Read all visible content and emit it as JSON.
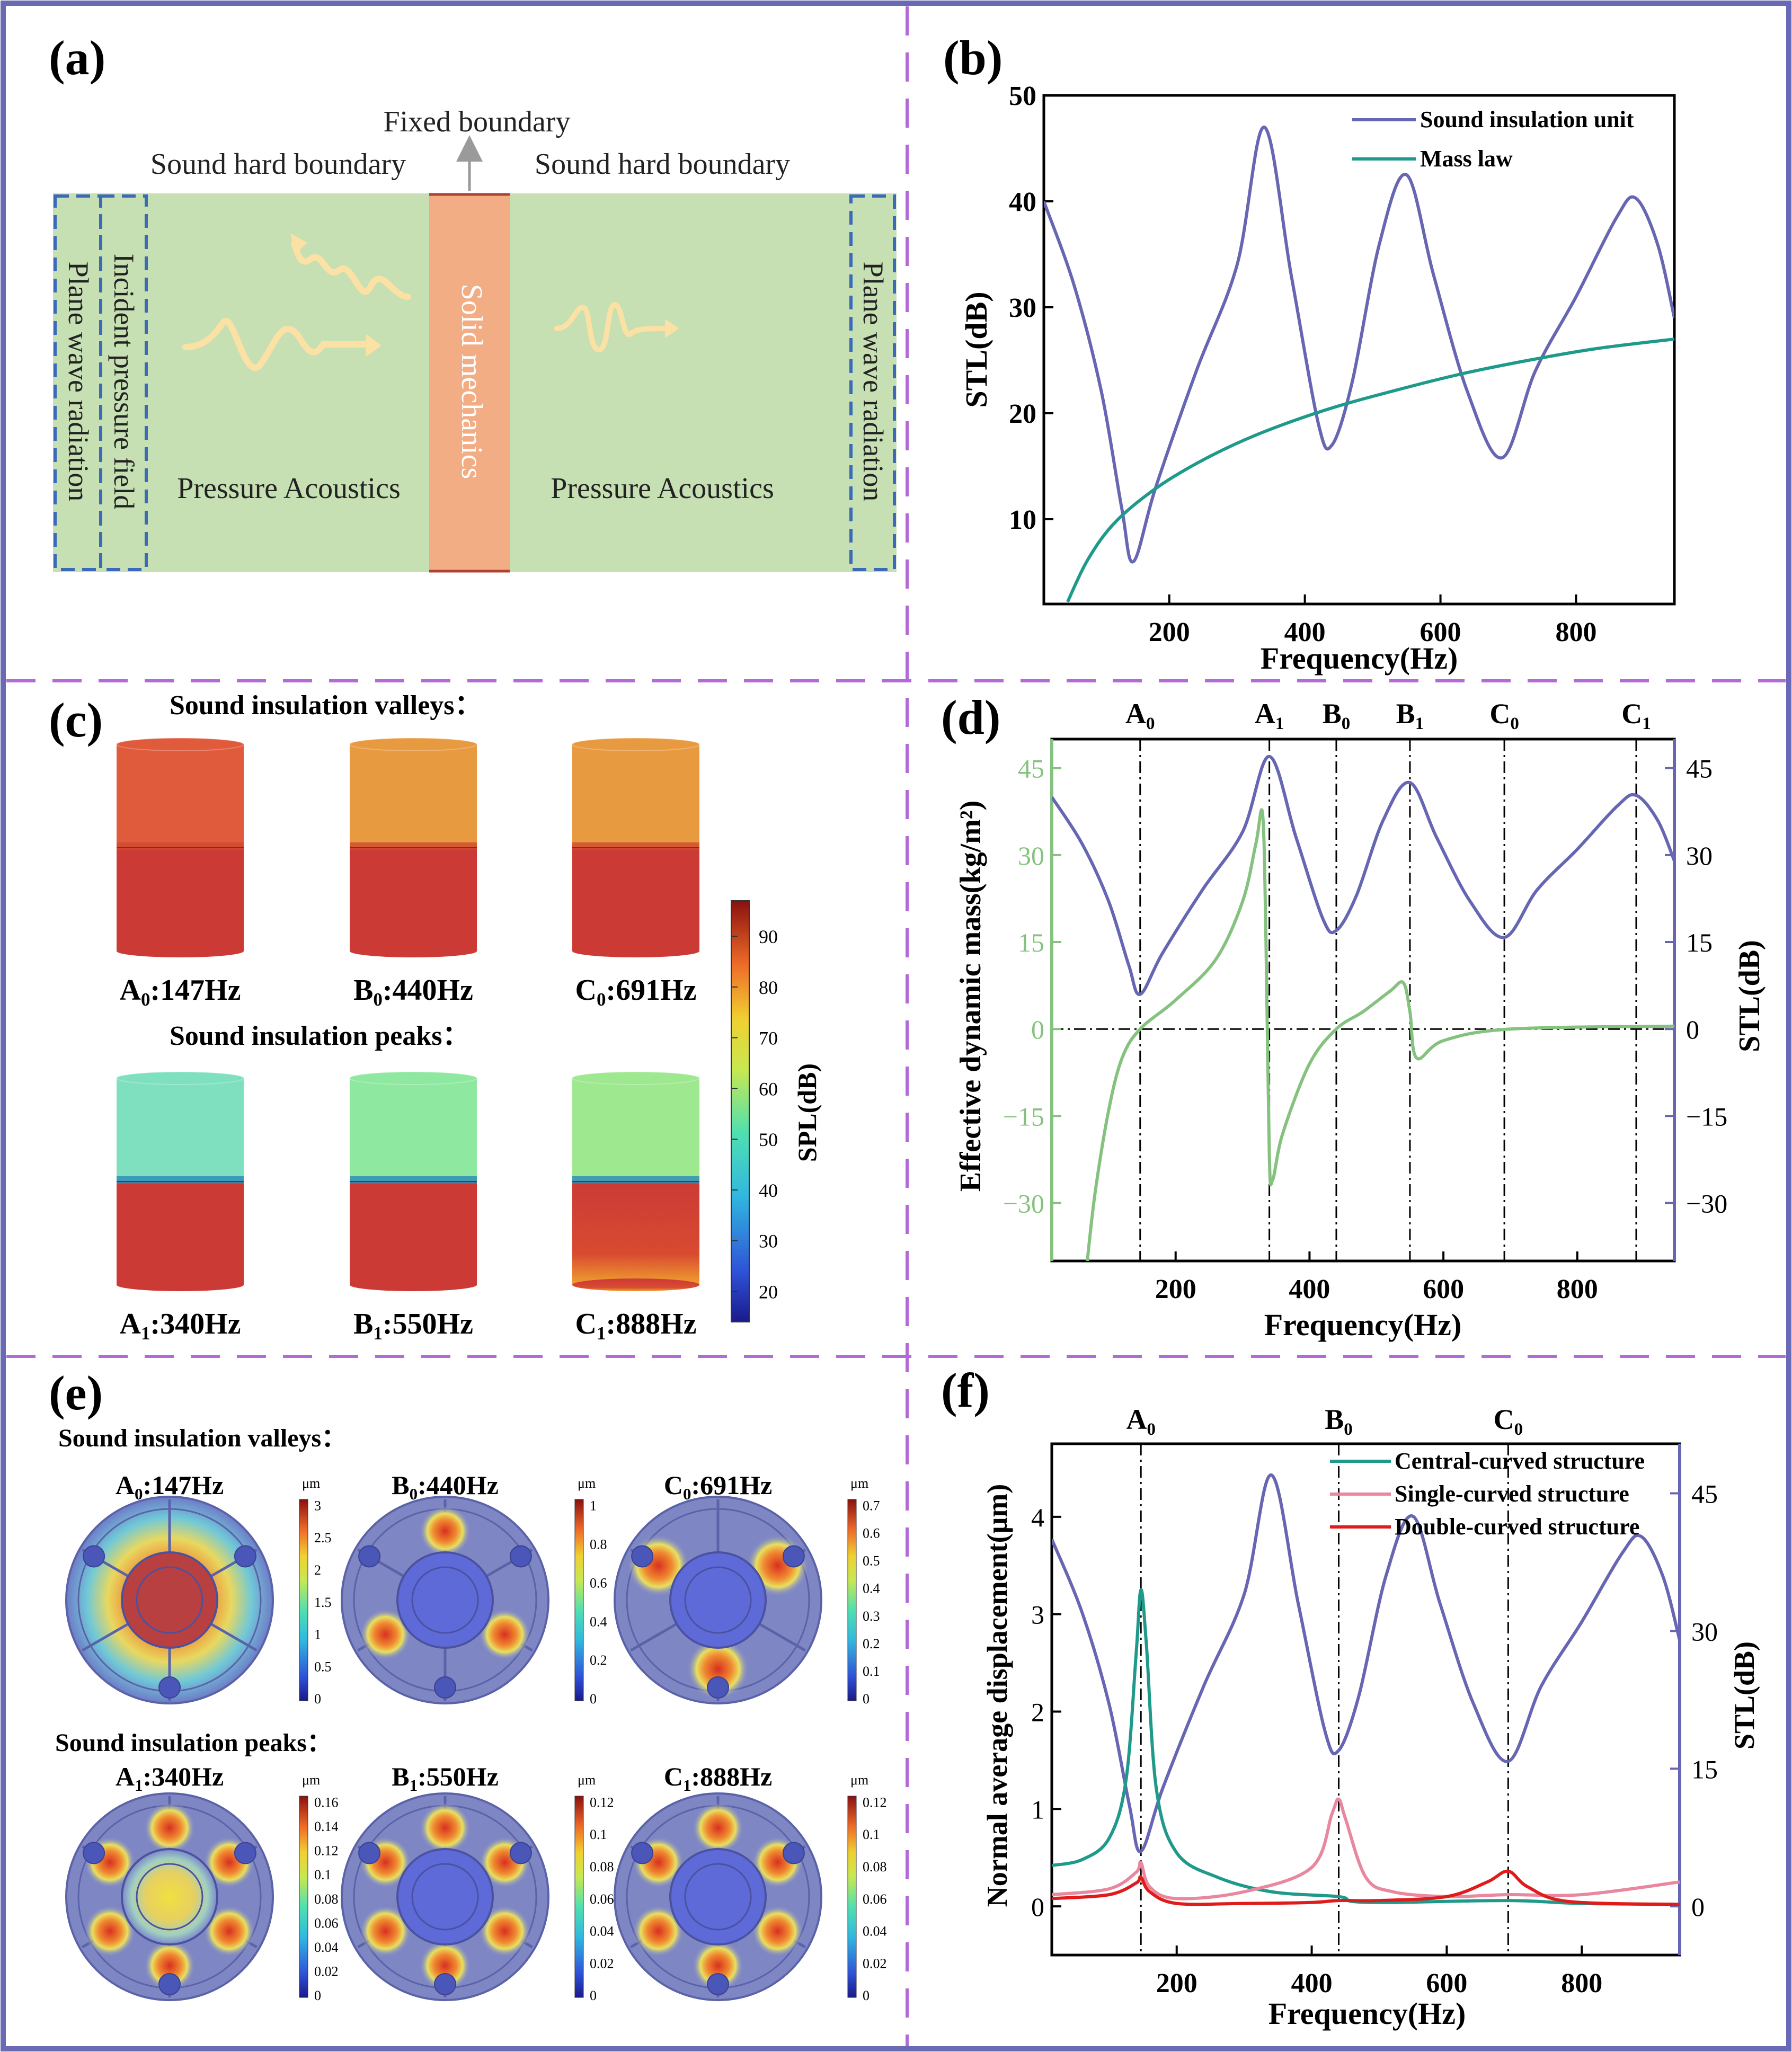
{
  "colors": {
    "frame": "#6a6ab4",
    "divider": "#b36ad6",
    "stl": "#6666b3",
    "mass_law": "#1f9a8a",
    "dyn_mass": "#86c27f",
    "central": "#1f9a8a",
    "single": "#e8879e",
    "double": "#e01b1b",
    "acoustic_domain": "#c6dfb3",
    "solid_domain": "#f2ad85",
    "wave": "#fbe1a3"
  },
  "panel_a": {
    "label": "(a)",
    "fixed_boundary": "Fixed boundary",
    "sound_hard_left": "Sound hard boundary",
    "sound_hard_right": "Sound hard boundary",
    "plane_wave_left": "Plane wave radiation",
    "incident_field": "Incident pressure field",
    "pressure_left": "Pressure Acoustics",
    "solid": "Solid mechanics",
    "pressure_right": "Pressure Acoustics",
    "plane_wave_right": "Plane wave radiation"
  },
  "panel_c": {
    "label": "(c)",
    "valleys_title": "Sound insulation valleys：",
    "peaks_title": "Sound insulation peaks：",
    "valleys": [
      {
        "mode": "A",
        "sub": "0",
        "freq": ":147Hz",
        "top_color": "#e05a3c",
        "bottom_color": "#cc3a36"
      },
      {
        "mode": "B",
        "sub": "0",
        "freq": ":440Hz",
        "top_color": "#e89a40",
        "bottom_color": "#cc3a36"
      },
      {
        "mode": "C",
        "sub": "0",
        "freq": ":691Hz",
        "top_color": "#e89a40",
        "bottom_color": "#cc3a36"
      }
    ],
    "peaks": [
      {
        "mode": "A",
        "sub": "1",
        "freq": ":340Hz",
        "top_color": "#7fe0c0",
        "bottom_color": "#cc3a36"
      },
      {
        "mode": "B",
        "sub": "1",
        "freq": ":550Hz",
        "top_color": "#8fe8a0",
        "bottom_color": "#cc3a36"
      },
      {
        "mode": "C",
        "sub": "1",
        "freq": ":888Hz",
        "top_color": "#9ee890",
        "bottom_color": "#cc3a36"
      }
    ],
    "colorbar": {
      "label": "SPL(dB)",
      "ticks": [
        "90",
        "80",
        "70",
        "60",
        "50",
        "40",
        "30",
        "20"
      ]
    }
  },
  "panel_e": {
    "label": "(e)",
    "valleys_title": "Sound insulation valleys：",
    "peaks_title": "Sound insulation peaks：",
    "unit": "μm",
    "items": [
      {
        "mode": "A",
        "sub": "0",
        "freq": ":147Hz",
        "ticks": [
          "3",
          "2.5",
          "2",
          "1.5",
          "1",
          "0.5",
          "0"
        ]
      },
      {
        "mode": "B",
        "sub": "0",
        "freq": ":440Hz",
        "ticks": [
          "1",
          "0.8",
          "0.6",
          "0.4",
          "0.2",
          "0"
        ]
      },
      {
        "mode": "C",
        "sub": "0",
        "freq": ":691Hz",
        "ticks": [
          "0.7",
          "0.6",
          "0.5",
          "0.4",
          "0.3",
          "0.2",
          "0.1",
          "0"
        ]
      },
      {
        "mode": "A",
        "sub": "1",
        "freq": ":340Hz",
        "ticks": [
          "0.16",
          "0.14",
          "0.12",
          "0.1",
          "0.08",
          "0.06",
          "0.04",
          "0.02",
          "0"
        ]
      },
      {
        "mode": "B",
        "sub": "1",
        "freq": ":550Hz",
        "ticks": [
          "0.12",
          "0.1",
          "0.08",
          "0.06",
          "0.04",
          "0.02",
          "0"
        ]
      },
      {
        "mode": "C",
        "sub": "1",
        "freq": ":888Hz",
        "ticks": [
          "0.12",
          "0.1",
          "0.08",
          "0.06",
          "0.04",
          "0.02",
          "0"
        ]
      }
    ]
  },
  "chart_data": [
    {
      "id": "b",
      "panel_label": "(b)",
      "type": "line",
      "xlabel": "Frequency(Hz)",
      "ylabel": "STL(dB)",
      "xlim": [
        15,
        945
      ],
      "ylim": [
        2,
        50
      ],
      "xticks": [
        200,
        400,
        600,
        800
      ],
      "yticks": [
        10,
        20,
        30,
        40,
        50
      ],
      "legend": "top-right",
      "series": [
        {
          "name": "Sound insulation unit",
          "x": [
            15,
            60,
            100,
            130,
            147,
            180,
            240,
            300,
            340,
            380,
            420,
            440,
            470,
            510,
            550,
            590,
            640,
            691,
            740,
            800,
            860,
            888,
            920,
            945
          ],
          "y": [
            40,
            32,
            22,
            11,
            6,
            13,
            24,
            34,
            47,
            33,
            19,
            17,
            23,
            36,
            42.5,
            33,
            22,
            15.8,
            24,
            31,
            38.5,
            40.3,
            36,
            29
          ]
        },
        {
          "name": "Mass law",
          "x": [
            50,
            80,
            120,
            180,
            250,
            330,
            430,
            530,
            630,
            730,
            830,
            945
          ],
          "y": [
            2.2,
            6.2,
            9.7,
            12.9,
            15.6,
            18,
            20.3,
            22.1,
            23.7,
            25,
            26.1,
            27
          ]
        }
      ]
    },
    {
      "id": "d",
      "panel_label": "(d)",
      "type": "line",
      "xlabel": "Frequency(Hz)",
      "ylabel": "Effective dynamic mass(kg/m²)",
      "ylabel_right": "STL(dB)",
      "xlim": [
        15,
        945
      ],
      "ylim": [
        -40,
        50
      ],
      "xticks": [
        200,
        400,
        600,
        800
      ],
      "yticks": [
        -30,
        -15,
        0,
        15,
        30,
        45
      ],
      "modes": [
        {
          "name": "A",
          "sub": "0",
          "x": 147
        },
        {
          "name": "A",
          "sub": "1",
          "x": 340
        },
        {
          "name": "B",
          "sub": "0",
          "x": 440
        },
        {
          "name": "B",
          "sub": "1",
          "x": 550
        },
        {
          "name": "C",
          "sub": "0",
          "x": 691
        },
        {
          "name": "C",
          "sub": "1",
          "x": 888
        }
      ],
      "series": [
        {
          "name": "Effective dynamic mass",
          "axis": "left",
          "x": [
            68,
            80,
            100,
            120,
            147,
            200,
            260,
            300,
            320,
            330,
            335,
            340,
            345,
            360,
            400,
            440,
            480,
            520,
            540,
            550,
            560,
            600,
            700,
            945
          ],
          "y": [
            -40,
            -28,
            -14,
            -5,
            0,
            5,
            12,
            22,
            32,
            37,
            15,
            -22,
            -26,
            -18,
            -6,
            0,
            3,
            6.5,
            8,
            3,
            -5,
            -2,
            0,
            0.5
          ]
        },
        {
          "name": "STL",
          "axis": "right",
          "x": [
            15,
            60,
            100,
            130,
            147,
            180,
            240,
            300,
            340,
            380,
            420,
            440,
            470,
            510,
            550,
            590,
            640,
            691,
            740,
            800,
            860,
            888,
            920,
            945
          ],
          "y": [
            40,
            32,
            22,
            11,
            6,
            13,
            24,
            34,
            47,
            33,
            19,
            17,
            23,
            36,
            42.5,
            33,
            22,
            15.8,
            24,
            31,
            38.5,
            40.3,
            36,
            29
          ]
        }
      ]
    },
    {
      "id": "f",
      "panel_label": "(f)",
      "type": "line",
      "xlabel": "Frequency(Hz)",
      "ylabel": "Normal average displacement(μm)",
      "ylabel_right": "STL(dB)",
      "xlim": [
        15,
        945
      ],
      "ylim": [
        -0.5,
        4.75
      ],
      "xticks": [
        200,
        400,
        600,
        800
      ],
      "yticks": [
        0,
        1,
        2,
        3,
        4
      ],
      "yticks_right": [
        0,
        15,
        30,
        45
      ],
      "y2lim": [
        -5.3,
        50.4
      ],
      "modes": [
        {
          "name": "A",
          "sub": "0",
          "x": 147
        },
        {
          "name": "B",
          "sub": "0",
          "x": 440
        },
        {
          "name": "C",
          "sub": "0",
          "x": 691
        }
      ],
      "legend": "top-right",
      "series": [
        {
          "name": "Central-curved structure",
          "axis": "left",
          "x": [
            15,
            60,
            100,
            125,
            140,
            147,
            155,
            170,
            200,
            260,
            340,
            440,
            460,
            520,
            691,
            800,
            945
          ],
          "y": [
            0.42,
            0.48,
            0.7,
            1.3,
            2.6,
            3.25,
            2.7,
            1.2,
            0.55,
            0.3,
            0.15,
            0.1,
            0.05,
            0.04,
            0.06,
            0.03,
            0.02
          ]
        },
        {
          "name": "Single-curved structure",
          "axis": "left",
          "x": [
            15,
            100,
            140,
            147,
            160,
            200,
            300,
            400,
            430,
            440,
            450,
            480,
            520,
            600,
            691,
            800,
            945
          ],
          "y": [
            0.12,
            0.18,
            0.35,
            0.45,
            0.2,
            0.08,
            0.15,
            0.4,
            0.95,
            1.1,
            0.9,
            0.3,
            0.15,
            0.1,
            0.12,
            0.12,
            0.25
          ]
        },
        {
          "name": "Double-curved structure",
          "axis": "left",
          "x": [
            15,
            100,
            140,
            147,
            160,
            200,
            300,
            400,
            440,
            500,
            600,
            660,
            691,
            720,
            780,
            945
          ],
          "y": [
            0.08,
            0.12,
            0.24,
            0.3,
            0.15,
            0.03,
            0.03,
            0.04,
            0.06,
            0.06,
            0.1,
            0.25,
            0.36,
            0.2,
            0.05,
            0.02
          ]
        },
        {
          "name": "STL",
          "axis": "right",
          "x": [
            15,
            60,
            100,
            130,
            147,
            180,
            240,
            300,
            340,
            380,
            420,
            440,
            470,
            510,
            550,
            590,
            640,
            691,
            740,
            800,
            860,
            888,
            920,
            945
          ],
          "y": [
            40,
            32,
            22,
            11,
            6,
            13,
            24,
            34,
            47,
            33,
            19,
            17,
            23,
            36,
            42.5,
            33,
            22,
            15.8,
            24,
            31,
            38.5,
            40.3,
            36,
            29
          ]
        }
      ]
    }
  ]
}
